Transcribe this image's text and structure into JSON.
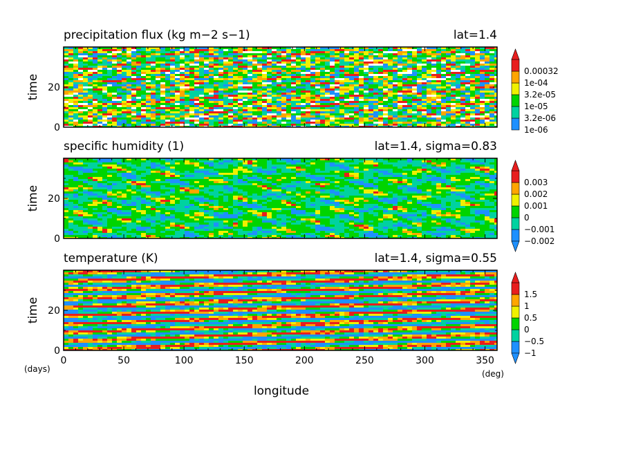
{
  "colors": {
    "palette": [
      "#1E90FF",
      "#00D2A0",
      "#00D400",
      "#F0F000",
      "#FFA500",
      "#E81E1E"
    ],
    "white": "#FFFFFF"
  },
  "x_axis": {
    "label": "longitude",
    "unit": "(deg)",
    "range": [
      0,
      360
    ],
    "ticks": [
      "0",
      "50",
      "100",
      "150",
      "200",
      "250",
      "300",
      "350"
    ]
  },
  "y_unit": "(days)",
  "chart_data": [
    {
      "type": "heatmap",
      "title": "precipitation flux (kg m−2 s−1)",
      "subtitle": "lat=1.4",
      "ylabel": "time",
      "ylim": [
        0,
        40
      ],
      "yticks": [
        "0",
        "20"
      ],
      "colorbar": {
        "labels": [
          "1e-06",
          "3.2e-06",
          "1e-05",
          "3.2e-05",
          "1e-04",
          "0.00032"
        ],
        "arrow_top": true,
        "arrow_bottom": false
      },
      "pattern": "noise"
    },
    {
      "type": "heatmap",
      "title": "specific humidity (1)",
      "subtitle": "lat=1.4, sigma=0.83",
      "ylabel": "time",
      "ylim": [
        0,
        40
      ],
      "yticks": [
        "0",
        "20"
      ],
      "colorbar": {
        "labels": [
          "−0.002",
          "−0.001",
          "0",
          "0.001",
          "0.002",
          "0.003"
        ],
        "arrow_top": true,
        "arrow_bottom": true
      },
      "pattern": "blobs"
    },
    {
      "type": "heatmap",
      "title": "temperature (K)",
      "subtitle": "lat=1.4, sigma=0.55",
      "ylabel": "time",
      "ylim": [
        0,
        40
      ],
      "yticks": [
        "0",
        "20"
      ],
      "colorbar": {
        "labels": [
          "−1",
          "−0.5",
          "0",
          "0.5",
          "1",
          "1.5"
        ],
        "arrow_top": true,
        "arrow_bottom": true
      },
      "pattern": "waves"
    }
  ]
}
